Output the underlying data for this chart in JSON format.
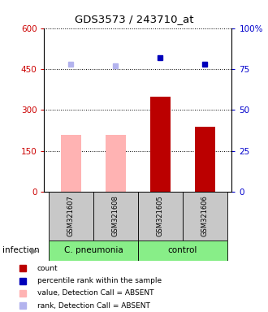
{
  "title": "GDS3573 / 243710_at",
  "samples": [
    "GSM321607",
    "GSM321608",
    "GSM321605",
    "GSM321606"
  ],
  "bar_values": [
    210,
    210,
    350,
    240
  ],
  "bar_colors": [
    "#ffb3b3",
    "#ffb3b3",
    "#bb0000",
    "#bb0000"
  ],
  "percentile_values": [
    468,
    462,
    492,
    468
  ],
  "percentile_absent": [
    true,
    true,
    false,
    false
  ],
  "ylim_left": [
    0,
    600
  ],
  "ylim_right": [
    0,
    100
  ],
  "yticks_left": [
    0,
    150,
    300,
    450,
    600
  ],
  "yticks_right": [
    0,
    25,
    50,
    75,
    100
  ],
  "ytick_right_labels": [
    "0",
    "25",
    "50",
    "75",
    "100%"
  ],
  "groups": [
    {
      "label": "C. pneumonia",
      "indices": [
        0,
        1
      ],
      "color": "#88ee88"
    },
    {
      "label": "control",
      "indices": [
        2,
        3
      ],
      "color": "#88ee88"
    }
  ],
  "group_row_label": "infection",
  "legend": [
    {
      "label": "count",
      "color": "#bb0000"
    },
    {
      "label": "percentile rank within the sample",
      "color": "#0000bb"
    },
    {
      "label": "value, Detection Call = ABSENT",
      "color": "#ffb3b3"
    },
    {
      "label": "rank, Detection Call = ABSENT",
      "color": "#b3b3ee"
    }
  ],
  "axis_left_color": "#cc0000",
  "axis_right_color": "#0000cc",
  "sample_box_color": "#c8c8c8",
  "plot_bg": "#ffffff",
  "dark_blue": "#0000bb",
  "light_blue": "#b3b3ee"
}
